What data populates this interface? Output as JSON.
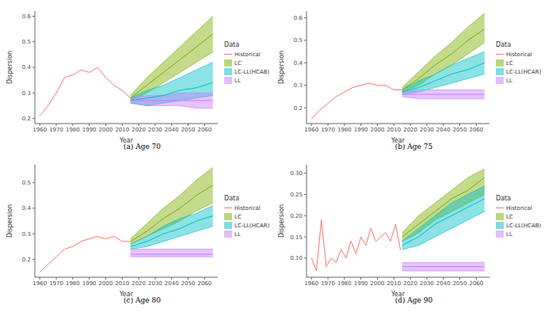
{
  "chart_data": [
    {
      "type": "line",
      "title": "(a) Age 70",
      "x_label": "Year",
      "y_label": "Dispersion",
      "legend_title": "Data",
      "xlim": [
        1957,
        2068
      ],
      "xticks": [
        1960,
        1970,
        1980,
        1990,
        2000,
        2010,
        2020,
        2030,
        2040,
        2050,
        2060
      ],
      "ylim": [
        0.18,
        0.62
      ],
      "yticks": [
        0.2,
        0.3,
        0.4,
        0.5,
        0.6
      ],
      "series": [
        {
          "name": "Historical",
          "color": "#F8766D",
          "x": [
            1960,
            1965,
            1970,
            1975,
            1980,
            1985,
            1990,
            1995,
            2000,
            2005,
            2010,
            2015
          ],
          "values": [
            0.21,
            0.25,
            0.3,
            0.36,
            0.37,
            0.39,
            0.38,
            0.4,
            0.36,
            0.33,
            0.31,
            0.28
          ]
        },
        {
          "name": "LC",
          "color": "#7CAE00",
          "x": [
            2015,
            2025,
            2035,
            2045,
            2055,
            2065
          ],
          "values": [
            0.28,
            0.33,
            0.38,
            0.43,
            0.48,
            0.53
          ],
          "lower": [
            0.27,
            0.3,
            0.34,
            0.38,
            0.42,
            0.46
          ],
          "upper": [
            0.29,
            0.36,
            0.42,
            0.48,
            0.54,
            0.6
          ]
        },
        {
          "name": "LC-LL(HCAB)",
          "color": "#00BFC4",
          "x": [
            2015,
            2025,
            2035,
            2045,
            2055,
            2065
          ],
          "values": [
            0.27,
            0.28,
            0.29,
            0.31,
            0.32,
            0.34
          ],
          "lower": [
            0.26,
            0.25,
            0.26,
            0.27,
            0.28,
            0.29
          ],
          "upper": [
            0.28,
            0.31,
            0.33,
            0.36,
            0.39,
            0.42
          ]
        },
        {
          "name": "LL",
          "color": "#C77CFF",
          "x": [
            2015,
            2025,
            2035,
            2045,
            2055,
            2065
          ],
          "values": [
            0.27,
            0.27,
            0.27,
            0.27,
            0.27,
            0.27
          ],
          "lower": [
            0.26,
            0.25,
            0.25,
            0.25,
            0.24,
            0.24
          ],
          "upper": [
            0.28,
            0.29,
            0.29,
            0.3,
            0.3,
            0.3
          ]
        }
      ]
    },
    {
      "type": "line",
      "title": "(b) Age 75",
      "x_label": "Year",
      "y_label": "Dispersion",
      "legend_title": "Data",
      "xlim": [
        1957,
        2068
      ],
      "xticks": [
        1960,
        1970,
        1980,
        1990,
        2000,
        2010,
        2020,
        2030,
        2040,
        2050,
        2060
      ],
      "ylim": [
        0.13,
        0.63
      ],
      "yticks": [
        0.2,
        0.3,
        0.4,
        0.5,
        0.6
      ],
      "series": [
        {
          "name": "Historical",
          "color": "#F8766D",
          "x": [
            1960,
            1965,
            1970,
            1975,
            1980,
            1985,
            1990,
            1995,
            2000,
            2005,
            2010,
            2015
          ],
          "values": [
            0.15,
            0.19,
            0.22,
            0.25,
            0.27,
            0.29,
            0.3,
            0.31,
            0.3,
            0.3,
            0.28,
            0.28
          ]
        },
        {
          "name": "LC",
          "color": "#7CAE00",
          "x": [
            2015,
            2025,
            2035,
            2045,
            2055,
            2065
          ],
          "values": [
            0.28,
            0.33,
            0.39,
            0.44,
            0.5,
            0.55
          ],
          "lower": [
            0.27,
            0.3,
            0.35,
            0.39,
            0.44,
            0.49
          ],
          "upper": [
            0.29,
            0.36,
            0.43,
            0.49,
            0.56,
            0.62
          ]
        },
        {
          "name": "LC-LL(HCAR)",
          "color": "#00BFC4",
          "x": [
            2015,
            2025,
            2035,
            2045,
            2055,
            2065
          ],
          "values": [
            0.27,
            0.29,
            0.32,
            0.35,
            0.37,
            0.4
          ],
          "lower": [
            0.26,
            0.27,
            0.29,
            0.31,
            0.33,
            0.35
          ],
          "upper": [
            0.28,
            0.32,
            0.35,
            0.39,
            0.42,
            0.45
          ]
        },
        {
          "name": "LL",
          "color": "#C77CFF",
          "x": [
            2015,
            2025,
            2035,
            2045,
            2055,
            2065
          ],
          "values": [
            0.26,
            0.26,
            0.26,
            0.26,
            0.26,
            0.26
          ],
          "lower": [
            0.25,
            0.24,
            0.24,
            0.24,
            0.24,
            0.24
          ],
          "upper": [
            0.27,
            0.28,
            0.28,
            0.28,
            0.28,
            0.28
          ]
        }
      ]
    },
    {
      "type": "line",
      "title": "(c) Age 80",
      "x_label": "Year",
      "y_label": "Dispersion",
      "legend_title": "Data",
      "xlim": [
        1957,
        2068
      ],
      "xticks": [
        1960,
        1970,
        1980,
        1990,
        2000,
        2010,
        2020,
        2030,
        2040,
        2050,
        2060
      ],
      "ylim": [
        0.13,
        0.57
      ],
      "yticks": [
        0.2,
        0.3,
        0.4,
        0.5
      ],
      "series": [
        {
          "name": "Historical",
          "color": "#F8766D",
          "x": [
            1960,
            1965,
            1970,
            1975,
            1980,
            1985,
            1990,
            1995,
            2000,
            2005,
            2010,
            2015
          ],
          "values": [
            0.15,
            0.18,
            0.21,
            0.24,
            0.25,
            0.27,
            0.28,
            0.29,
            0.28,
            0.29,
            0.27,
            0.27
          ]
        },
        {
          "name": "LC",
          "color": "#7CAE00",
          "x": [
            2015,
            2025,
            2035,
            2045,
            2055,
            2065
          ],
          "values": [
            0.27,
            0.31,
            0.36,
            0.4,
            0.45,
            0.49
          ],
          "lower": [
            0.26,
            0.29,
            0.32,
            0.35,
            0.39,
            0.42
          ],
          "upper": [
            0.28,
            0.34,
            0.4,
            0.45,
            0.51,
            0.56
          ]
        },
        {
          "name": "LC-LL(HCAR)",
          "color": "#00BFC4",
          "x": [
            2015,
            2025,
            2035,
            2045,
            2055,
            2065
          ],
          "values": [
            0.25,
            0.27,
            0.3,
            0.32,
            0.35,
            0.37
          ],
          "lower": [
            0.24,
            0.25,
            0.27,
            0.29,
            0.31,
            0.33
          ],
          "upper": [
            0.26,
            0.29,
            0.33,
            0.36,
            0.38,
            0.41
          ]
        },
        {
          "name": "LL",
          "color": "#C77CFF",
          "x": [
            2015,
            2025,
            2035,
            2045,
            2055,
            2065
          ],
          "values": [
            0.22,
            0.22,
            0.22,
            0.22,
            0.22,
            0.22
          ],
          "lower": [
            0.21,
            0.21,
            0.21,
            0.21,
            0.21,
            0.21
          ],
          "upper": [
            0.24,
            0.24,
            0.24,
            0.24,
            0.24,
            0.24
          ]
        }
      ]
    },
    {
      "type": "line",
      "title": "(d) Age 90",
      "x_label": "Year",
      "y_label": "Dispersion",
      "legend_title": "Data",
      "xlim": [
        1957,
        2068
      ],
      "xticks": [
        1960,
        1970,
        1980,
        1990,
        2000,
        2010,
        2020,
        2030,
        2040,
        2050,
        2060
      ],
      "ylim": [
        0.055,
        0.32
      ],
      "yticks": [
        {
          "value": 0.1,
          "label": "0.10"
        },
        {
          "value": 0.15,
          "label": "0.15"
        },
        {
          "value": 0.2,
          "label": "0.20"
        },
        {
          "value": 0.25,
          "label": "0.25"
        },
        {
          "value": 0.3,
          "label": "0.30"
        }
      ],
      "series": [
        {
          "name": "Historical",
          "color": "#F8766D",
          "x": [
            1960,
            1963,
            1966,
            1969,
            1972,
            1975,
            1978,
            1981,
            1984,
            1987,
            1990,
            1993,
            1996,
            1999,
            2002,
            2005,
            2008,
            2011,
            2014
          ],
          "values": [
            0.1,
            0.07,
            0.19,
            0.08,
            0.1,
            0.09,
            0.12,
            0.1,
            0.14,
            0.11,
            0.15,
            0.13,
            0.17,
            0.14,
            0.15,
            0.16,
            0.14,
            0.18,
            0.12
          ]
        },
        {
          "name": "LC",
          "color": "#7CAE00",
          "x": [
            2015,
            2025,
            2035,
            2045,
            2055,
            2065
          ],
          "values": [
            0.15,
            0.18,
            0.21,
            0.24,
            0.26,
            0.29
          ],
          "lower": [
            0.14,
            0.16,
            0.19,
            0.21,
            0.23,
            0.25
          ],
          "upper": [
            0.16,
            0.2,
            0.23,
            0.26,
            0.29,
            0.31
          ]
        },
        {
          "name": "LC-LL(HCAB)",
          "color": "#00BFC4",
          "x": [
            2015,
            2025,
            2035,
            2045,
            2055,
            2065
          ],
          "values": [
            0.13,
            0.15,
            0.18,
            0.2,
            0.22,
            0.24
          ],
          "lower": [
            0.12,
            0.13,
            0.15,
            0.17,
            0.19,
            0.21
          ],
          "upper": [
            0.14,
            0.17,
            0.2,
            0.23,
            0.25,
            0.27
          ]
        },
        {
          "name": "LL",
          "color": "#C77CFF",
          "x": [
            2015,
            2025,
            2035,
            2045,
            2055,
            2065
          ],
          "values": [
            0.08,
            0.08,
            0.08,
            0.08,
            0.08,
            0.08
          ],
          "lower": [
            0.07,
            0.07,
            0.07,
            0.07,
            0.07,
            0.07
          ],
          "upper": [
            0.09,
            0.09,
            0.09,
            0.09,
            0.09,
            0.09
          ]
        }
      ]
    }
  ]
}
